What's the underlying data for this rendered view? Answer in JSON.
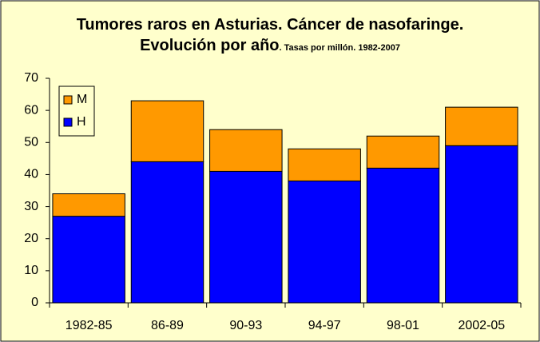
{
  "chart_data": {
    "type": "stacked_bar",
    "title": "Tumores raros en Asturias. Cáncer de nasofaringe. Evolución por año",
    "subtitle": ". Tasas por millón. 1982-2007",
    "categories": [
      "1982-85",
      "86-89",
      "90-93",
      "94-97",
      "98-01",
      "2002-05"
    ],
    "series": [
      {
        "name": "H",
        "color": "#0000ff",
        "values": [
          27,
          44,
          41,
          38,
          42,
          49
        ]
      },
      {
        "name": "M",
        "color": "#ff9900",
        "values": [
          7,
          19,
          13,
          10,
          10,
          12
        ]
      }
    ],
    "ylim": [
      0,
      70
    ],
    "yticks": [
      0,
      10,
      20,
      30,
      40,
      50,
      60,
      70
    ],
    "grid": false,
    "legend": "top-left"
  }
}
